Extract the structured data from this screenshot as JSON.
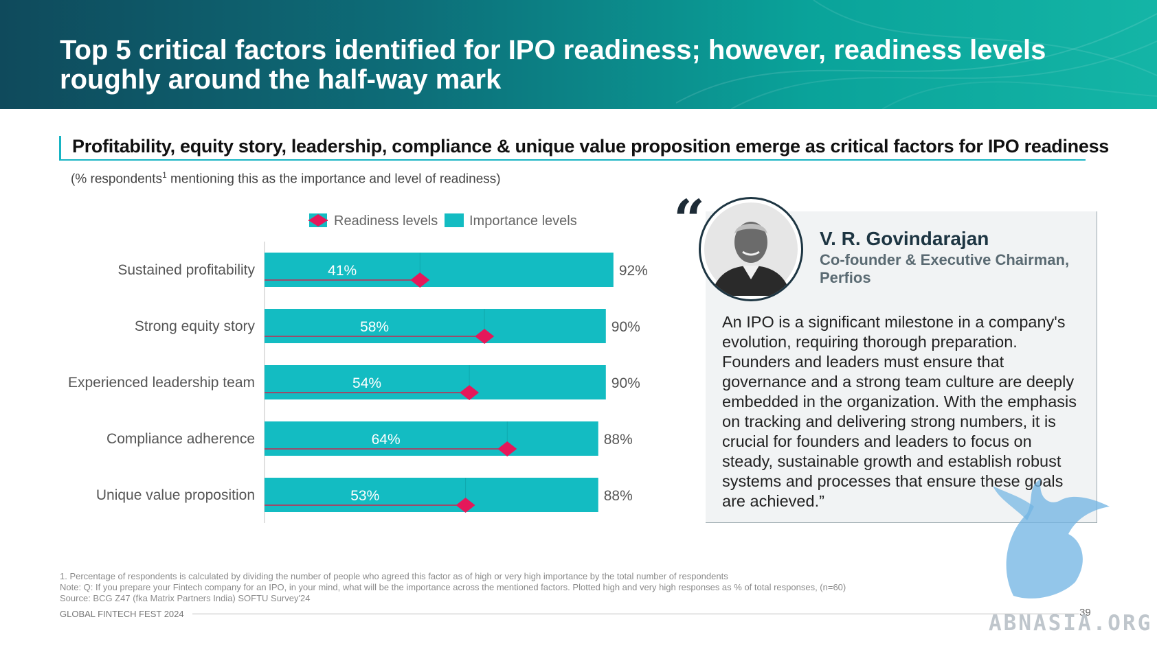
{
  "header": {
    "title": "Top 5 critical factors identified for IPO readiness; however, readiness levels roughly around the half-way mark"
  },
  "subtitle": "Profitability, equity story, leadership, compliance & unique value proposition emerge as critical factors for IPO readiness",
  "chart_note": {
    "text": "(% respondents",
    "sup": "1",
    "rest": " mentioning this as the importance and level of readiness)"
  },
  "colors": {
    "bar": "#13bcc2",
    "diamond": "#e5185a",
    "line": "#c8264e",
    "label": "#555555",
    "value": "#555555"
  },
  "chart_data": {
    "type": "bar",
    "orientation": "horizontal",
    "legend_position": "top",
    "categories": [
      "Sustained profitability",
      "Strong equity story",
      "Experienced leadership team",
      "Compliance adherence",
      "Unique value proposition"
    ],
    "series": [
      {
        "name": "Readiness levels",
        "marker": "diamond",
        "values": [
          41,
          58,
          54,
          64,
          53
        ],
        "labels": [
          "41%",
          "58%",
          "54%",
          "64%",
          "53%"
        ]
      },
      {
        "name": "Importance levels",
        "marker": "bar",
        "values": [
          92,
          90,
          90,
          88,
          88
        ],
        "labels": [
          "92%",
          "90%",
          "90%",
          "88%",
          "88%"
        ]
      }
    ],
    "xlim": [
      0,
      100
    ],
    "unit": "%"
  },
  "quote": {
    "name": "V. R. Govindarajan",
    "role": "Co-founder & Executive Chairman, Perfios",
    "text": "An IPO is a significant milestone in a company's evolution, requiring thorough preparation. Founders and leaders must ensure that governance and a strong team culture are deeply embedded in the organization. With the emphasis on tracking and delivering strong numbers, it is crucial for founders and leaders to focus on steady, sustainable growth and establish robust systems and processes that ensure these goals are achieved.”"
  },
  "footnotes": [
    "1. Percentage of respondents is calculated by dividing the number of people who agreed this factor as of high or very high importance by the total number of respondents",
    "Note: Q: If you prepare your Fintech company for an IPO, in your mind, what will be the importance across the mentioned factors. Plotted high and very high responses as % of total responses, (n=60)",
    "Source: BCG Z47 (fka Matrix Partners India) SOFTU Survey'24"
  ],
  "footer": {
    "label": "GLOBAL FINTECH FEST 2024",
    "page": "39"
  },
  "watermark": "ABNASIA.ORG"
}
